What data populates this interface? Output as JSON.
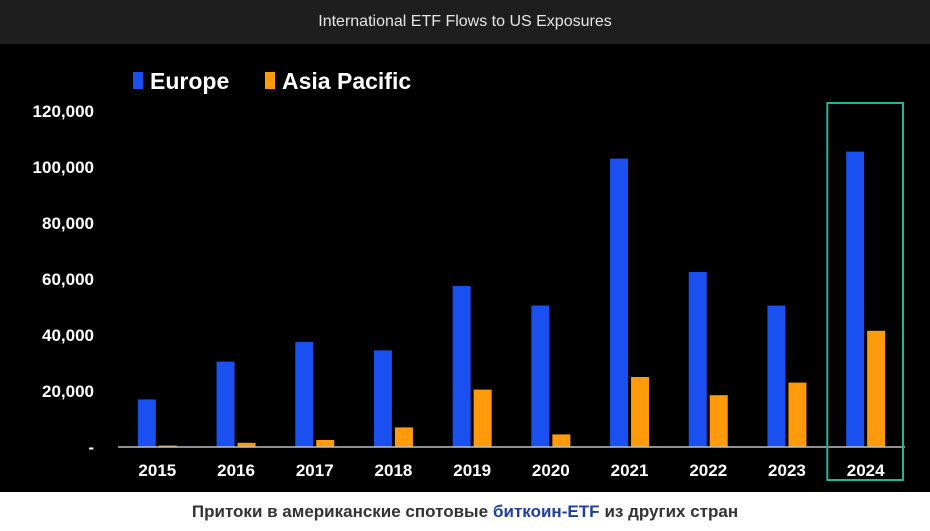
{
  "header": {
    "title": "International ETF Flows to US Exposures"
  },
  "caption": {
    "before": "Притоки в американские спотовые",
    "link": "биткоин-ETF",
    "after": "из других стран"
  },
  "colors": {
    "europe": "#1a4ff0",
    "asia_pacific": "#ff9b0a",
    "highlight": "#1fb597",
    "axis_text": "#ffffff",
    "background": "#000000"
  },
  "chart_data": {
    "type": "bar",
    "title": "International ETF Flows to US Exposures",
    "categories": [
      "2015",
      "2016",
      "2017",
      "2018",
      "2019",
      "2020",
      "2021",
      "2022",
      "2023",
      "2024"
    ],
    "series": [
      {
        "name": "Europe",
        "values": [
          17000,
          30500,
          37500,
          34500,
          57500,
          50500,
          103000,
          62500,
          50500,
          105500
        ]
      },
      {
        "name": "Asia Pacific",
        "values": [
          500,
          1500,
          2500,
          7000,
          20500,
          4500,
          25000,
          18500,
          23000,
          41500
        ]
      }
    ],
    "yticks": [
      0,
      20000,
      40000,
      60000,
      80000,
      100000,
      120000
    ],
    "ytick_labels": [
      "-",
      "20,000",
      "40,000",
      "60,000",
      "80,000",
      "100,000",
      "120,000"
    ],
    "ylim": [
      0,
      120000
    ],
    "xlabel": "",
    "ylabel": "",
    "legend": [
      "Europe",
      "Asia Pacific"
    ],
    "legend_position": "top-left",
    "highlighted_category": "2024",
    "grid": false
  }
}
